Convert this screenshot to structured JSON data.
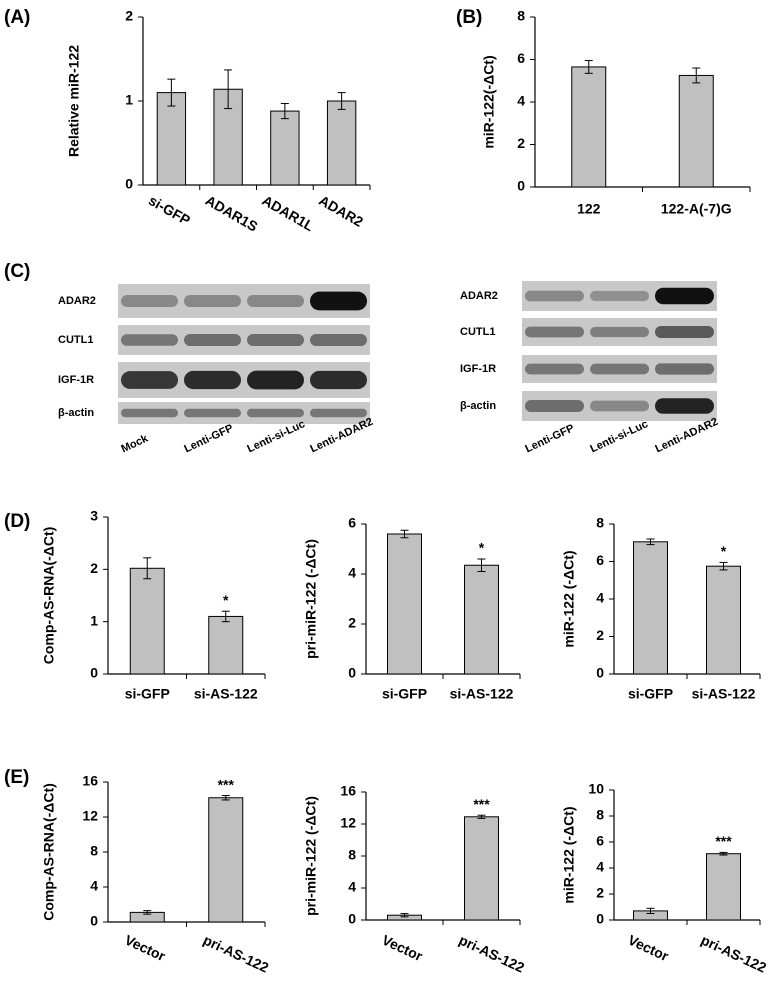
{
  "panels": [
    "(A)",
    "(B)",
    "(C)",
    "(D)",
    "(E)"
  ],
  "chart_data": [
    {
      "type": "bar",
      "y_label": "Relative miR-122",
      "categories": [
        "si-GFP",
        "ADAR1S",
        "ADAR1L",
        "ADAR2"
      ],
      "values": [
        1.1,
        1.14,
        0.88,
        1.0
      ],
      "errors": [
        0.16,
        0.23,
        0.09,
        0.1
      ],
      "color": "#c0c0c0",
      "ylim": [
        0,
        2
      ],
      "yticks": [
        0,
        1,
        2
      ]
    },
    {
      "type": "bar",
      "y_label": "miR-122(-ΔCt)",
      "categories": [
        "122",
        "122-A(-7)G"
      ],
      "values": [
        5.65,
        5.25
      ],
      "errors": [
        0.3,
        0.35
      ],
      "color": "#c0c0c0",
      "ylim": [
        0,
        8
      ],
      "yticks": [
        0,
        2,
        4,
        6,
        8
      ]
    },
    {
      "type": "bar",
      "y_label": "Comp-AS-RNA(-ΔCt)",
      "categories": [
        "si-GFP",
        "si-AS-122"
      ],
      "values": [
        2.02,
        1.1
      ],
      "errors": [
        0.2,
        0.1
      ],
      "significance": [
        null,
        "*"
      ],
      "color": "#c0c0c0",
      "ylim": [
        0,
        3
      ],
      "yticks": [
        0,
        1,
        2,
        3
      ]
    },
    {
      "type": "bar",
      "y_label": "pri-miR-122 (-ΔCt)",
      "categories": [
        "si-GFP",
        "si-AS-122"
      ],
      "values": [
        5.6,
        4.35
      ],
      "errors": [
        0.15,
        0.25
      ],
      "significance": [
        null,
        "*"
      ],
      "color": "#c0c0c0",
      "ylim": [
        0,
        6
      ],
      "yticks": [
        0,
        2,
        4,
        6
      ]
    },
    {
      "type": "bar",
      "y_label": "miR-122 (-ΔCt)",
      "categories": [
        "si-GFP",
        "si-AS-122"
      ],
      "values": [
        7.05,
        5.75
      ],
      "errors": [
        0.15,
        0.2
      ],
      "significance": [
        null,
        "*"
      ],
      "color": "#c0c0c0",
      "ylim": [
        0,
        8
      ],
      "yticks": [
        0,
        2,
        4,
        6,
        8
      ]
    },
    {
      "type": "bar",
      "y_label": "Comp-AS-RNA(-ΔCt)",
      "categories": [
        "Vector",
        "pri-AS-122"
      ],
      "values": [
        1.1,
        14.2
      ],
      "errors": [
        0.2,
        0.25
      ],
      "significance": [
        null,
        "***"
      ],
      "color": "#c0c0c0",
      "ylim": [
        0,
        16
      ],
      "yticks": [
        0,
        4,
        8,
        12,
        16
      ]
    },
    {
      "type": "bar",
      "y_label": "pri-miR-122 (-ΔCt)",
      "categories": [
        "Vector",
        "pri-AS-122"
      ],
      "values": [
        0.6,
        12.9
      ],
      "errors": [
        0.2,
        0.2
      ],
      "significance": [
        null,
        "***"
      ],
      "color": "#c0c0c0",
      "ylim": [
        0,
        16
      ],
      "yticks": [
        0,
        4,
        8,
        12,
        16
      ]
    },
    {
      "type": "bar",
      "y_label": "miR-122 (-ΔCt)",
      "categories": [
        "Vector",
        "pri-AS-122"
      ],
      "values": [
        0.7,
        5.1
      ],
      "errors": [
        0.2,
        0.1
      ],
      "significance": [
        null,
        "***"
      ],
      "color": "#c0c0c0",
      "ylim": [
        0,
        10
      ],
      "yticks": [
        0,
        2,
        4,
        6,
        8,
        10
      ]
    }
  ],
  "blots": [
    {
      "rows": [
        "ADAR2",
        "CUTL1",
        "IGF-1R",
        "β-actin"
      ],
      "lanes": [
        "Mock",
        "Lenti-GFP",
        "Lenti-si-Luc",
        "Lenti-ADAR2"
      ]
    },
    {
      "rows": [
        "ADAR2",
        "CUTL1",
        "IGF-1R",
        "β-actin"
      ],
      "lanes": [
        "Lenti-GFP",
        "Lenti-si-Luc",
        "Lenti-ADAR2"
      ]
    }
  ]
}
